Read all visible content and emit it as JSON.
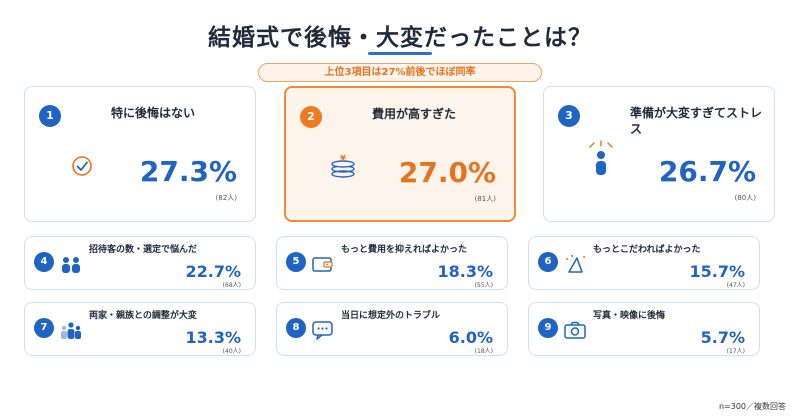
{
  "title": "結婚式で後悔・大変だったことは？",
  "banner": "上位3項目は27%前後でほぼ同率",
  "top_items": [
    {
      "rank": "1",
      "label": "特に後悔はない",
      "pct": "27.3%",
      "count": "(82人)",
      "icon": "checkmark-circle-icon"
    },
    {
      "rank": "2",
      "label": "費用が高すぎた",
      "pct": "27.0%",
      "count": "(81人)",
      "icon": "coin-stack-icon"
    },
    {
      "rank": "3",
      "label": "準備が大変すぎてストレス",
      "pct": "26.7%",
      "count": "(80人)",
      "icon": "stressed-person-icon"
    }
  ],
  "small_items": [
    {
      "rank": "4",
      "label": "招待客の数・選定で悩んだ",
      "pct": "22.7%",
      "count": "(68人)",
      "icon": "guests-icon"
    },
    {
      "rank": "5",
      "label": "もっと費用を抑えればよかった",
      "pct": "18.3%",
      "count": "(55人)",
      "icon": "wallet-icon"
    },
    {
      "rank": "6",
      "label": "もっとこだわればよかった",
      "pct": "15.7%",
      "count": "(47人)",
      "icon": "party-hat-icon"
    },
    {
      "rank": "7",
      "label": "両家・親族との調整が大変",
      "pct": "13.3%",
      "count": "(40人)",
      "icon": "family-icon"
    },
    {
      "rank": "8",
      "label": "当日に想定外のトラブル",
      "pct": "6.0%",
      "count": "(18人)",
      "icon": "chat-bubble-icon"
    },
    {
      "rank": "9",
      "label": "写真・映像に後悔",
      "pct": "5.7%",
      "count": "(17人)",
      "icon": "camera-icon"
    }
  ],
  "footnote": "n=300／複数回答",
  "colors": {
    "accent_blue": "#1f63c4",
    "accent_orange": "#e8731f",
    "card_border": "#cfe0f3"
  }
}
